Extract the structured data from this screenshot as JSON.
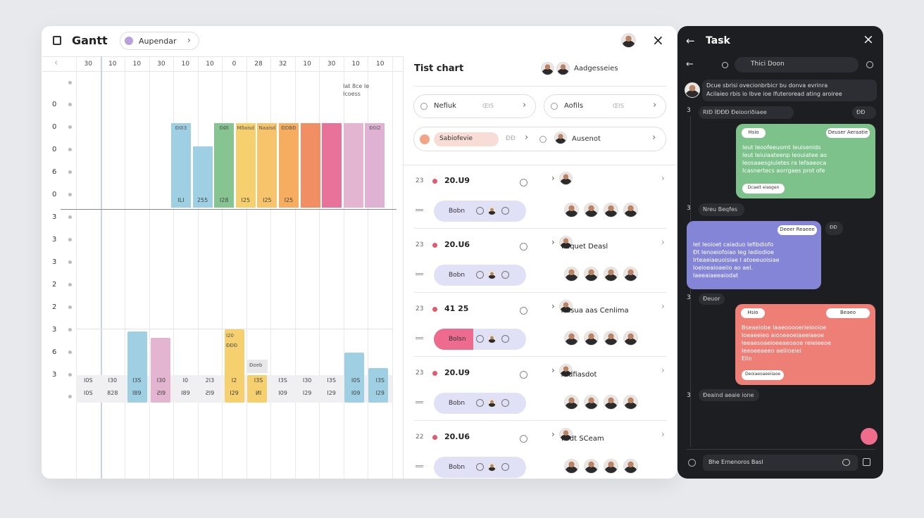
{
  "header": {
    "title": "Gantt",
    "pill": "Aupendar"
  },
  "gantt": {
    "columns": [
      "30",
      "10",
      "10",
      "30",
      "10",
      "10",
      "0",
      "28",
      "32",
      "10",
      "30",
      "10",
      "10"
    ],
    "rows": [
      "0",
      "0",
      "0",
      "6",
      "0",
      "3",
      "3",
      "3",
      "2",
      "2",
      "3",
      "6",
      "3"
    ],
    "note": [
      "Iat 8ce Ie",
      "Icoess"
    ],
    "top_bars": [
      {
        "top": "Ð0I3",
        "bottom": "ILI"
      },
      {
        "bottom": "255"
      },
      {
        "top": "ÐØI",
        "bottom": "I28"
      },
      {
        "top": "Mðaisd",
        "bottom": "I25"
      },
      {
        "top": "Naaisd",
        "bottom": "I25"
      },
      {
        "top": "ÐDBÐ",
        "bottom": "I25"
      },
      {},
      {},
      {},
      {
        "top": "Ð0I2"
      }
    ],
    "lower_tags": [
      "I20",
      "ÐÐÐ",
      "Ðoeb"
    ],
    "band_row1": [
      "I0S",
      "I30",
      "I3S",
      "I30",
      "I0",
      "2I3",
      "I2",
      "I3S",
      "I3S",
      "I30",
      "I3S",
      "I0S",
      "I3S"
    ],
    "band_row2": [
      "I0S",
      "828",
      "I89",
      "ƧI9",
      "I89",
      "ƧI9",
      "I29",
      "ИI",
      "I09",
      "I29",
      "I29",
      "I09",
      "I29"
    ]
  },
  "list": {
    "title": "Tist chart",
    "assignees": "Aadgesseies",
    "filters": [
      {
        "label": "Nefiuk",
        "meta": "ŒIS"
      },
      {
        "label": "Aofils",
        "meta": "ŒIS"
      }
    ],
    "selected": "Sabiofevie",
    "selected_meta": "ÐÐ",
    "assign": "Ausenot",
    "items": [
      {
        "num": "23",
        "time": "20.U9",
        "tag": "Bobn"
      },
      {
        "num": "23",
        "time": "20.U6",
        "tag": "Bobn",
        "name": "Puquet Deasl"
      },
      {
        "num": "23",
        "time": "41 25",
        "tag": "Bolsn",
        "name": "Ausua aas Cenlima"
      },
      {
        "num": "23",
        "time": "20.U9",
        "tag": "Bobn",
        "name": "Afdfiasdot"
      },
      {
        "num": "22",
        "time": "20.U6",
        "tag": "Bobn",
        "name": "Podt SCeam"
      }
    ]
  },
  "task": {
    "title": "Task",
    "search": "Thici Doon",
    "intro": [
      "Dcue sbrisi ovecionbrbicr bu donva evrinra",
      "Acilaieo rbis io lbve ioe  Ifuteroread ating aroiree"
    ],
    "chip1": "RIÐ ÍÐÐÐ  Ðeiooriðiaee",
    "chip1_side": "ÐÐ",
    "counts": [
      "3",
      "3",
      "3",
      "3"
    ],
    "chip2": "Nreu Beqfes",
    "chip3": "Ðeuor",
    "chip4": "Ðeaind aeaie ione",
    "reply": "ÐÐ",
    "green": {
      "tag": "Hsio",
      "tag2": "Deuser Aeraatie",
      "lines": [
        "Ieut Ieoofeeuomt Ieuisenids",
        "Ieut Ieiuiaateenp Ieouiatee ao",
        "Ieosaaesgiuietes ra Iefaaeoca",
        "Icasnertecs aorrgaes prot ofe"
      ],
      "button": "Dcaeit eiasgen"
    },
    "purple": {
      "tag": "Deeer Reaeee",
      "lines": [
        "Iet Ieoioet caiaduo Iefibdiofo",
        "Ðt Ienoeiofoiao Ieg Iediodioe",
        "Irteaeiaeuoisiae I atoeeuoisiae",
        "Ioeioeaioaeiio ao aeI.",
        "Iaeeaiaeeaiodat"
      ]
    },
    "red": {
      "tag": "Hsio",
      "tag2": "Beaeo",
      "lines": [
        "Bseaeiobe Iaaeooooerieiooioe",
        "Ioeaeeieo aiooeeoeiaeeiaeoe",
        "Ieeaesoaeioeeaeoaoe reieieeoe",
        "Ieeoeeaeeo aeiiioeiei",
        "Ello"
      ],
      "button": "Deoiaeoaeeiiaoe"
    },
    "input": "Bhe Ernenoros Basl"
  }
}
